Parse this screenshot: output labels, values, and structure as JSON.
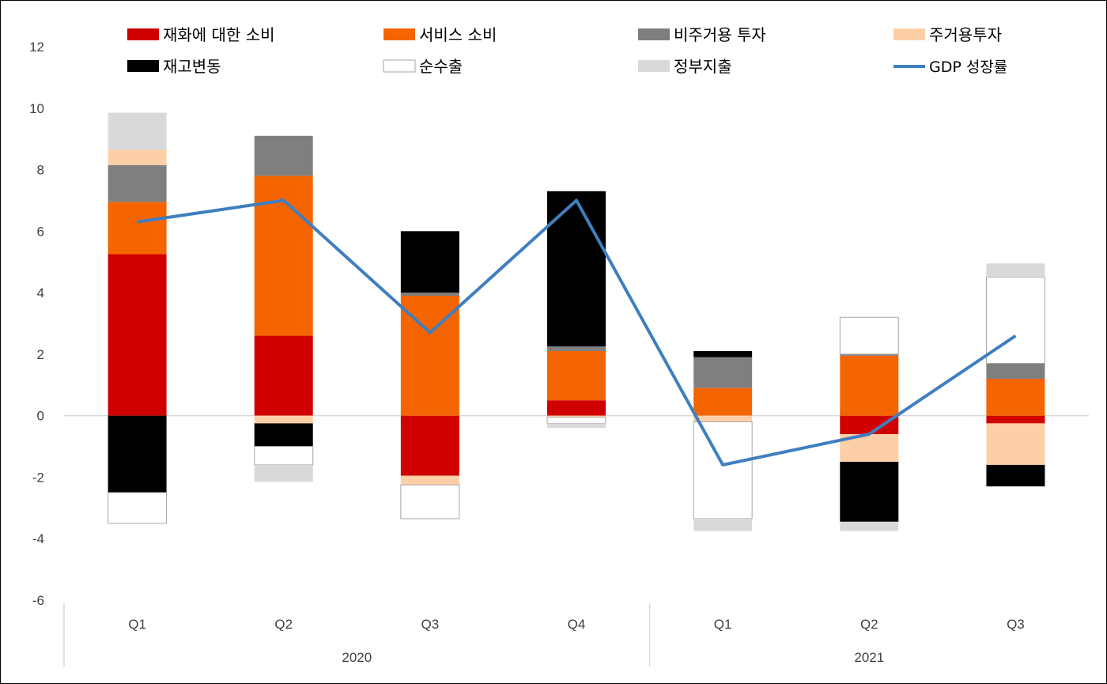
{
  "chart_data": {
    "type": "bar",
    "stacked": true,
    "ylim": [
      -6,
      12
    ],
    "yticks": [
      "12",
      "10",
      "8",
      "6",
      "4",
      "2",
      "0",
      "-2",
      "-4",
      "-6"
    ],
    "ytick_values": [
      12,
      10,
      8,
      6,
      4,
      2,
      0,
      -2,
      -4,
      -6
    ],
    "categories": [
      "Q1",
      "Q2",
      "Q3",
      "Q4",
      "Q1",
      "Q2",
      "Q3"
    ],
    "groups": [
      {
        "label": "2020",
        "count": 4
      },
      {
        "label": "2021",
        "count": 3
      }
    ],
    "legend_placement": "top",
    "series": [
      {
        "name": "재화에 대한 소비",
        "color": "#d00000",
        "outline": false,
        "values": [
          5.25,
          2.6,
          -1.95,
          0.5,
          0,
          -0.6,
          -0.25
        ]
      },
      {
        "name": "서비스 소비",
        "color": "#f46500",
        "outline": false,
        "values": [
          1.7,
          5.2,
          3.9,
          1.6,
          0.9,
          1.95,
          1.2
        ]
      },
      {
        "name": "비주거용 투자",
        "color": "#7f7f7f",
        "outline": false,
        "values": [
          1.2,
          1.3,
          0.1,
          0.15,
          1.0,
          0.05,
          0.5
        ]
      },
      {
        "name": "주거용투자",
        "color": "#fdcfa7",
        "outline": false,
        "values": [
          0.5,
          -0.25,
          -0.3,
          -0.05,
          -0.2,
          -0.9,
          -1.35
        ]
      },
      {
        "name": "재고변동",
        "color": "#000000",
        "outline": false,
        "values": [
          -2.5,
          -0.75,
          2.0,
          5.05,
          0.2,
          -1.95,
          -0.7
        ]
      },
      {
        "name": "순수출",
        "color": "#ffffff",
        "outline": true,
        "values": [
          -1.0,
          -0.6,
          -1.1,
          -0.2,
          -3.15,
          1.2,
          2.8
        ]
      },
      {
        "name": "정부지출",
        "color": "#d9d9d9",
        "outline": false,
        "values": [
          1.2,
          -0.55,
          0,
          -0.15,
          -0.4,
          -0.3,
          0.45
        ]
      }
    ],
    "line": {
      "name": "GDP 성장률",
      "color": "#3f7fbf",
      "values": [
        6.3,
        7.0,
        2.7,
        7.0,
        -1.6,
        -0.6,
        2.6
      ]
    }
  }
}
